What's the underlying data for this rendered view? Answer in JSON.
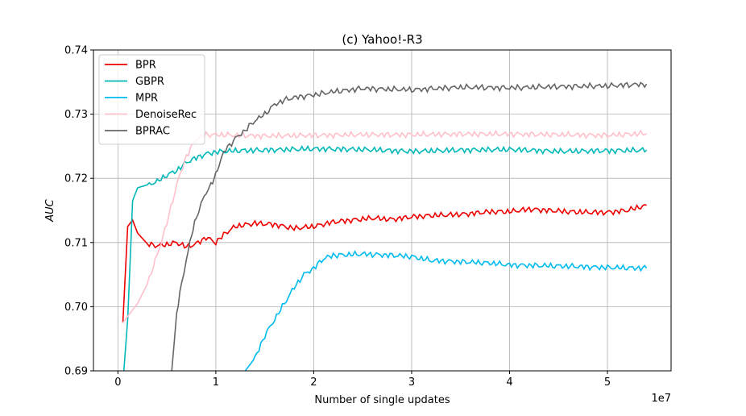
{
  "chart_data": {
    "type": "line",
    "title": "(c) Yahoo!-R3",
    "xlabel": "Number of single updates",
    "ylabel": "AUC",
    "x_offset_label": "1e7",
    "xlim": [
      -0.25,
      5.65
    ],
    "ylim": [
      0.69,
      0.74
    ],
    "x_ticks": [
      0,
      1,
      2,
      3,
      4,
      5
    ],
    "x_tick_labels": [
      "0",
      "1",
      "2",
      "3",
      "4",
      "5"
    ],
    "y_ticks": [
      0.69,
      0.7,
      0.71,
      0.72,
      0.73,
      0.74
    ],
    "y_tick_labels": [
      "0.69",
      "0.70",
      "0.71",
      "0.72",
      "0.73",
      "0.74"
    ],
    "grid": true,
    "legend_position": "top-left",
    "series": [
      {
        "name": "BPR",
        "color": "#ee0000",
        "x": [
          0.05,
          0.1,
          0.15,
          0.2,
          0.3,
          0.4,
          0.5,
          0.6,
          0.7,
          0.8,
          0.9,
          1.0,
          1.1,
          1.2,
          1.4,
          1.6,
          1.8,
          2.0,
          2.2,
          2.4,
          2.6,
          2.8,
          3.0,
          3.2,
          3.4,
          3.6,
          3.8,
          4.0,
          4.2,
          4.4,
          4.6,
          4.8,
          5.0,
          5.2,
          5.4
        ],
        "y": [
          0.6975,
          0.7125,
          0.7135,
          0.7115,
          0.7098,
          0.7095,
          0.7097,
          0.71,
          0.7093,
          0.7098,
          0.7108,
          0.71,
          0.7115,
          0.7125,
          0.713,
          0.7128,
          0.7122,
          0.7125,
          0.7132,
          0.7135,
          0.7138,
          0.7136,
          0.714,
          0.7142,
          0.7143,
          0.7145,
          0.7148,
          0.7148,
          0.7152,
          0.715,
          0.7148,
          0.7147,
          0.7147,
          0.715,
          0.7158
        ]
      },
      {
        "name": "GBPR",
        "color": "#00b8b8",
        "x": [
          0.05,
          0.1,
          0.15,
          0.2,
          0.3,
          0.4,
          0.5,
          0.6,
          0.7,
          0.8,
          0.9,
          1.0,
          1.2,
          1.5,
          2.0,
          2.5,
          3.0,
          3.5,
          4.0,
          4.5,
          5.0,
          5.4
        ],
        "y": [
          0.688,
          0.698,
          0.7165,
          0.7185,
          0.719,
          0.7195,
          0.7205,
          0.7212,
          0.7225,
          0.7232,
          0.7238,
          0.7241,
          0.7243,
          0.7244,
          0.7246,
          0.7245,
          0.7242,
          0.7244,
          0.7245,
          0.7242,
          0.7243,
          0.7244
        ]
      },
      {
        "name": "MPR",
        "color": "#00bbee",
        "x": [
          1.3,
          1.4,
          1.5,
          1.6,
          1.7,
          1.8,
          1.9,
          2.0,
          2.1,
          2.2,
          2.5,
          2.8,
          3.0,
          3.2,
          3.5,
          3.8,
          4.0,
          4.3,
          4.6,
          5.0,
          5.4
        ],
        "y": [
          0.69,
          0.692,
          0.6955,
          0.698,
          0.7005,
          0.703,
          0.705,
          0.706,
          0.7075,
          0.708,
          0.7082,
          0.708,
          0.7078,
          0.7072,
          0.707,
          0.7068,
          0.7065,
          0.7064,
          0.7063,
          0.7061,
          0.706
        ]
      },
      {
        "name": "DenoiseRec",
        "color": "#ffc0cb",
        "x": [
          0.05,
          0.1,
          0.2,
          0.3,
          0.4,
          0.5,
          0.6,
          0.7,
          0.8,
          0.9,
          1.0,
          1.5,
          2.0,
          2.5,
          3.0,
          3.5,
          4.0,
          4.5,
          5.0,
          5.4
        ],
        "y": [
          0.6975,
          0.6985,
          0.7005,
          0.7035,
          0.708,
          0.713,
          0.719,
          0.7235,
          0.7262,
          0.7268,
          0.7268,
          0.7266,
          0.7267,
          0.7268,
          0.7268,
          0.7269,
          0.7269,
          0.7268,
          0.7267,
          0.727
        ]
      },
      {
        "name": "BPRAC",
        "color": "#666666",
        "x": [
          0.55,
          0.6,
          0.65,
          0.7,
          0.75,
          0.8,
          0.85,
          0.9,
          0.95,
          1.0,
          1.05,
          1.1,
          1.2,
          1.3,
          1.4,
          1.5,
          1.6,
          1.7,
          1.8,
          2.0,
          2.2,
          2.5,
          3.0,
          3.5,
          4.0,
          4.5,
          5.0,
          5.4
        ],
        "y": [
          0.69,
          0.699,
          0.7035,
          0.7075,
          0.711,
          0.714,
          0.716,
          0.7178,
          0.719,
          0.7205,
          0.723,
          0.7245,
          0.7262,
          0.7275,
          0.729,
          0.73,
          0.7315,
          0.7322,
          0.7326,
          0.733,
          0.7335,
          0.734,
          0.7338,
          0.7342,
          0.7341,
          0.7343,
          0.7344,
          0.7347
        ]
      }
    ]
  }
}
